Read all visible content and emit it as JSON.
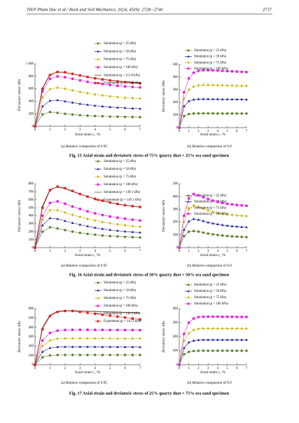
{
  "header": "TIEP Pham Duc et al./ Rock and Soil Mechanics, 2024, 45(9): 2728−2740",
  "page_number": "2737",
  "figure_captions": [
    "Fig. 15   Axial strain and deviatoric stress of 75% quarry dust + 25% sea sand specimen",
    "Fig. 16   Axial strain and deviatoric stress of 50% quarry dust + 50% sea sand specimen",
    "Fig. 17   Axial strain and deviatoric stress of 25% quarry dust + 75% sea sand specimen"
  ],
  "chart_data": [
    {
      "type": "line",
      "subcaption": "(a) Relative compaction of 0.95",
      "x_label": "Axial strain ε₁ /%",
      "y_label": "Deviatoric stress /kPa",
      "xlim": [
        0,
        7
      ],
      "xticks": [
        0,
        1,
        2,
        3,
        4,
        5,
        6,
        7
      ],
      "ylim": [
        0,
        1000
      ],
      "yticks": [
        0,
        200,
        400,
        600,
        800,
        {
          "value": 1000,
          "label": "1 000"
        }
      ],
      "x": [
        0,
        0.5,
        1,
        1.5,
        2,
        2.5,
        3,
        3.5,
        4,
        4.5,
        5,
        5.5,
        6,
        6.5,
        7
      ],
      "series": [
        {
          "name": "Simulation (p = 25 kPa)",
          "color": "#5a7a2a",
          "marker": "circle",
          "values": [
            0,
            190,
            228,
            215,
            200,
            188,
            178,
            170,
            165,
            160,
            156,
            153,
            150,
            148,
            146
          ]
        },
        {
          "name": "Simulation (p = 50 kPa)",
          "color": "#1a1aa0",
          "marker": "triangle",
          "values": [
            0,
            320,
            410,
            418,
            400,
            380,
            360,
            345,
            330,
            318,
            308,
            300,
            293,
            287,
            282
          ]
        },
        {
          "name": "Simulation (p = 75 kPa)",
          "color": "#c8b400",
          "marker": "diamond",
          "values": [
            0,
            460,
            595,
            618,
            600,
            575,
            550,
            530,
            510,
            495,
            480,
            468,
            458,
            450,
            444
          ]
        },
        {
          "name": "Simulation (p = 100 kPa)",
          "color": "#e020e0",
          "marker": "square",
          "values": [
            0,
            560,
            760,
            798,
            785,
            760,
            735,
            712,
            692,
            675,
            660,
            648,
            638,
            630,
            622
          ]
        },
        {
          "name": "Simulation (p = 113.8 kPa)",
          "color": "#4a2a10",
          "marker": "none",
          "values": [
            0,
            610,
            830,
            868,
            860,
            838,
            812,
            790,
            770,
            752,
            737,
            724,
            712,
            703,
            695
          ]
        },
        {
          "name": "Experiment (p = 113.8 kPa)",
          "color": "#e02020",
          "marker": "square",
          "values": [
            0,
            600,
            820,
            870,
            865,
            840,
            815,
            790,
            768,
            750,
            733,
            718,
            706,
            696,
            688
          ]
        }
      ]
    },
    {
      "type": "line",
      "subcaption": "(b) Relative compaction of 0.9",
      "x_label": "Axial strain ε₁ /%",
      "y_label": "Deviatoric stress /kPa",
      "xlim": [
        0,
        7
      ],
      "xticks": [
        0,
        1,
        2,
        3,
        4,
        5,
        6,
        7
      ],
      "ylim": [
        0,
        500
      ],
      "yticks": [
        0,
        100,
        200,
        300,
        400,
        500
      ],
      "x": [
        0,
        0.5,
        1,
        1.5,
        2,
        2.5,
        3,
        3.5,
        4,
        4.5,
        5,
        5.5,
        6,
        6.5,
        7
      ],
      "series": [
        {
          "name": "Simulation (p = 25 kPa)",
          "color": "#5a7a2a",
          "marker": "circle",
          "values": [
            0,
            92,
            108,
            112,
            113,
            113,
            113,
            113,
            112,
            112,
            112,
            112,
            112,
            112,
            112
          ]
        },
        {
          "name": "Simulation (p = 50 kPa)",
          "color": "#1a1aa0",
          "marker": "triangle",
          "values": [
            0,
            170,
            210,
            222,
            226,
            227,
            227,
            226,
            226,
            225,
            225,
            224,
            224,
            224,
            223
          ]
        },
        {
          "name": "Simulation (p = 75 kPa)",
          "color": "#c8b400",
          "marker": "diamond",
          "values": [
            0,
            230,
            300,
            325,
            335,
            338,
            338,
            337,
            336,
            335,
            334,
            333,
            332,
            331,
            330
          ]
        },
        {
          "name": "Simulation (p = 100 kPa)",
          "color": "#e020e0",
          "marker": "square",
          "values": [
            0,
            280,
            390,
            435,
            450,
            455,
            455,
            454,
            452,
            450,
            448,
            446,
            444,
            442,
            440
          ]
        }
      ]
    },
    {
      "type": "line",
      "subcaption": "(a) Relative compaction of 0.95",
      "x_label": "Axial strain ε₁ /%",
      "y_label": "Deviatoric stress /kPa",
      "xlim": [
        0,
        7
      ],
      "xticks": [
        0,
        1,
        2,
        3,
        4,
        5,
        6,
        7
      ],
      "ylim": [
        0,
        800
      ],
      "yticks": [
        0,
        100,
        200,
        300,
        400,
        500,
        600,
        700,
        800
      ],
      "x": [
        0,
        0.5,
        1,
        1.5,
        2,
        2.5,
        3,
        3.5,
        4,
        4.5,
        5,
        5.5,
        6,
        6.5,
        7
      ],
      "series": [
        {
          "name": "Simulation (p = 25 kPa)",
          "color": "#5a7a2a",
          "marker": "circle",
          "values": [
            0,
            200,
            255,
            240,
            220,
            200,
            185,
            172,
            162,
            152,
            145,
            140,
            135,
            131,
            128
          ]
        },
        {
          "name": "Simulation (p = 50 kPa)",
          "color": "#1a1aa0",
          "marker": "triangle",
          "values": [
            0,
            280,
            370,
            360,
            335,
            310,
            288,
            268,
            250,
            235,
            222,
            212,
            203,
            196,
            190
          ]
        },
        {
          "name": "Simulation (p = 75 kPa)",
          "color": "#c8b400",
          "marker": "diamond",
          "values": [
            0,
            350,
            470,
            470,
            440,
            410,
            385,
            360,
            340,
            320,
            305,
            292,
            280,
            270,
            262
          ]
        },
        {
          "name": "Simulation (p = 100 kPa)",
          "color": "#e020e0",
          "marker": "square",
          "values": [
            0,
            400,
            560,
            580,
            550,
            515,
            485,
            455,
            430,
            408,
            390,
            375,
            362,
            350,
            340
          ]
        },
        {
          "name": "Simulation (p = 149.1 kPa)",
          "color": "#4a2a10",
          "marker": "none",
          "values": [
            0,
            520,
            730,
            760,
            740,
            705,
            670,
            640,
            610,
            585,
            565,
            545,
            530,
            518,
            508
          ]
        },
        {
          "name": "Experiment (p = 149.1 kPa)",
          "color": "#e02020",
          "marker": "square",
          "values": [
            0,
            500,
            720,
            765,
            745,
            710,
            672,
            640,
            612,
            588,
            566,
            548,
            532,
            520,
            510
          ]
        }
      ]
    },
    {
      "type": "line",
      "subcaption": "(b) Relative compaction of 0.9",
      "x_label": "Axial strain ε₁ /%",
      "y_label": "Deviatoric stress /kPa",
      "xlim": [
        0,
        7
      ],
      "xticks": [
        0,
        1,
        2,
        3,
        4,
        5,
        6,
        7
      ],
      "ylim": [
        0,
        500
      ],
      "yticks": [
        0,
        100,
        200,
        300,
        400,
        500
      ],
      "x": [
        0,
        0.5,
        1,
        1.5,
        2,
        2.5,
        3,
        3.5,
        4,
        4.5,
        5,
        5.5,
        6,
        6.5,
        7
      ],
      "series": [
        {
          "name": "Simulation (p = 25 kPa)",
          "color": "#5a7a2a",
          "marker": "circle",
          "values": [
            0,
            90,
            125,
            130,
            125,
            118,
            110,
            104,
            99,
            95,
            91,
            88,
            86,
            84,
            82
          ]
        },
        {
          "name": "Simulation (p = 50 kPa)",
          "color": "#1a1aa0",
          "marker": "triangle",
          "values": [
            0,
            140,
            205,
            225,
            218,
            208,
            198,
            190,
            183,
            177,
            172,
            168,
            165,
            162,
            160
          ]
        },
        {
          "name": "Simulation (p = 75 kPa)",
          "color": "#c8b400",
          "marker": "diamond",
          "values": [
            0,
            200,
            300,
            330,
            320,
            305,
            292,
            280,
            272,
            265,
            260,
            256,
            252,
            249,
            247
          ]
        },
        {
          "name": "Simulation (p = 100 kPa)",
          "color": "#e020e0",
          "marker": "square",
          "values": [
            0,
            250,
            385,
            420,
            410,
            395,
            380,
            368,
            358,
            350,
            343,
            338,
            334,
            331,
            328
          ]
        }
      ]
    },
    {
      "type": "line",
      "subcaption": "(a) Relative compaction of 0.95",
      "x_label": "Axial strain ε₁ /%",
      "y_label": "Deviatoric stress /kPa",
      "xlim": [
        0,
        7
      ],
      "xticks": [
        0,
        1,
        2,
        3,
        4,
        5,
        6,
        7
      ],
      "ylim": [
        0,
        600
      ],
      "yticks": [
        0,
        100,
        200,
        300,
        400,
        500,
        600
      ],
      "x": [
        0,
        0.5,
        1,
        1.5,
        2,
        2.5,
        3,
        3.5,
        4,
        4.5,
        5,
        5.5,
        6,
        6.5,
        7
      ],
      "series": [
        {
          "name": "Simulation (p = 25 kPa)",
          "color": "#5a7a2a",
          "marker": "circle",
          "values": [
            0,
            80,
            100,
            105,
            105,
            105,
            105,
            105,
            105,
            105,
            105,
            105,
            105,
            105,
            105
          ]
        },
        {
          "name": "Simulation (p = 50 kPa)",
          "color": "#1a1aa0",
          "marker": "triangle",
          "values": [
            0,
            140,
            180,
            190,
            192,
            192,
            192,
            192,
            192,
            191,
            191,
            190,
            190,
            190,
            189
          ]
        },
        {
          "name": "Simulation (p = 75 kPa)",
          "color": "#c8b400",
          "marker": "diamond",
          "values": [
            0,
            200,
            260,
            278,
            282,
            283,
            283,
            282,
            282,
            281,
            281,
            280,
            280,
            280,
            280
          ]
        },
        {
          "name": "Simulation (p = 100 kPa)",
          "color": "#e020e0",
          "marker": "square",
          "values": [
            0,
            260,
            340,
            365,
            372,
            374,
            374,
            374,
            373,
            373,
            372,
            372,
            371,
            371,
            370
          ]
        },
        {
          "name": "Simulation (p = 142.3 kPa)",
          "color": "#4a2a10",
          "marker": "none",
          "values": [
            0,
            400,
            530,
            570,
            578,
            578,
            575,
            572,
            570,
            568,
            565,
            563,
            560,
            558,
            556
          ]
        },
        {
          "name": "Experiment (p = 142.3 kPa)",
          "color": "#e02020",
          "marker": "square",
          "values": [
            0,
            380,
            520,
            565,
            575,
            575,
            565,
            555,
            545,
            535,
            525,
            515,
            505,
            495,
            485
          ]
        }
      ]
    },
    {
      "type": "line",
      "subcaption": "(b) Relative compaction of 0.9",
      "x_label": "Axial strain ε₁ /%",
      "y_label": "Deviatoric stress /kPa",
      "xlim": [
        0,
        7
      ],
      "xticks": [
        0,
        1,
        2,
        3,
        4,
        5,
        6,
        7
      ],
      "ylim": [
        0,
        400
      ],
      "yticks": [
        0,
        100,
        200,
        300,
        400
      ],
      "x": [
        0,
        0.5,
        1,
        1.5,
        2,
        2.5,
        3,
        3.5,
        4,
        4.5,
        5,
        5.5,
        6,
        6.5,
        7
      ],
      "series": [
        {
          "name": "Simulation (p = 25 kPa)",
          "color": "#5a7a2a",
          "marker": "circle",
          "values": [
            0,
            75,
            92,
            98,
            100,
            100,
            100,
            100,
            100,
            100,
            100,
            100,
            100,
            100,
            100
          ]
        },
        {
          "name": "Simulation (p = 50 kPa)",
          "color": "#1a1aa0",
          "marker": "triangle",
          "values": [
            0,
            120,
            160,
            172,
            176,
            178,
            178,
            178,
            178,
            178,
            178,
            178,
            178,
            178,
            178
          ]
        },
        {
          "name": "Simulation (p = 75 kPa)",
          "color": "#c8b400",
          "marker": "diamond",
          "values": [
            0,
            170,
            225,
            248,
            256,
            258,
            258,
            258,
            258,
            258,
            258,
            258,
            258,
            258,
            258
          ]
        },
        {
          "name": "Simulation (p = 100 kPa)",
          "color": "#e020e0",
          "marker": "square",
          "values": [
            0,
            220,
            300,
            330,
            340,
            342,
            343,
            343,
            343,
            342,
            342,
            342,
            341,
            341,
            341
          ]
        }
      ]
    }
  ]
}
